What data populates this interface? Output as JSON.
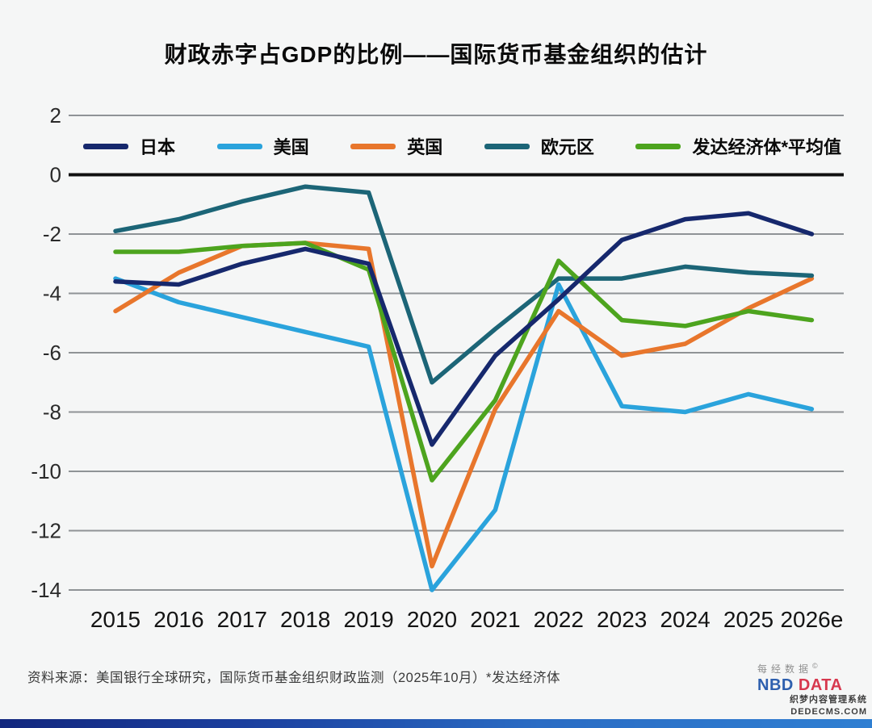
{
  "title": "财政赤字占GDP的比例——国际货币基金组织的估计",
  "footer": {
    "source": "资料来源：美国银行全球研究，国际货币基金组织财政监测（2025年10月）*发达经济体"
  },
  "branding": {
    "name_cn": "每经数据",
    "copyright": "©",
    "nbd": "NBD",
    "data_word": "DATA",
    "nbd_color": "#2d5fae",
    "data_color": "#d7384e"
  },
  "watermark": {
    "line1": "织梦内容管理系统",
    "line2": "DEDECMS.COM"
  },
  "chart_data": {
    "type": "line",
    "title": "财政赤字占GDP的比例——国际货币基金组织的估计",
    "x": [
      "2015",
      "2016",
      "2017",
      "2018",
      "2019",
      "2020",
      "2021",
      "2022",
      "2023",
      "2024",
      "2025",
      "2026e"
    ],
    "xlabel": "",
    "ylabel": "",
    "ylim": [
      -14,
      2
    ],
    "ytick_step": 2,
    "grid": true,
    "zero_line": true,
    "legend_position": "top",
    "series": [
      {
        "id": "japan",
        "name": "日本",
        "color": "#16286d",
        "values": [
          -3.6,
          -3.7,
          -3.0,
          -2.5,
          -3.0,
          -9.1,
          -6.1,
          -4.2,
          -2.2,
          -1.5,
          -1.3,
          -2.0
        ]
      },
      {
        "id": "us",
        "name": "美国",
        "color": "#2aa3dc",
        "values": [
          -3.5,
          -4.3,
          -4.8,
          -5.3,
          -5.8,
          -14.0,
          -11.3,
          -3.7,
          -7.8,
          -8.0,
          -7.4,
          -7.9
        ]
      },
      {
        "id": "uk",
        "name": "英国",
        "color": "#e8762c",
        "values": [
          -4.6,
          -3.3,
          -2.4,
          -2.3,
          -2.5,
          -13.2,
          -7.9,
          -4.6,
          -6.1,
          -5.7,
          -4.5,
          -3.5
        ]
      },
      {
        "id": "eurozone",
        "name": "欧元区",
        "color": "#1c6577",
        "values": [
          -1.9,
          -1.5,
          -0.9,
          -0.4,
          -0.6,
          -7.0,
          -5.2,
          -3.5,
          -3.5,
          -3.1,
          -3.3,
          -3.4
        ]
      },
      {
        "id": "advanced-economies",
        "name": "发达经济体*平均值",
        "color": "#4da41e",
        "values": [
          -2.6,
          -2.6,
          -2.4,
          -2.3,
          -3.2,
          -10.3,
          -7.6,
          -2.9,
          -4.9,
          -5.1,
          -4.6,
          -4.9
        ]
      }
    ]
  }
}
